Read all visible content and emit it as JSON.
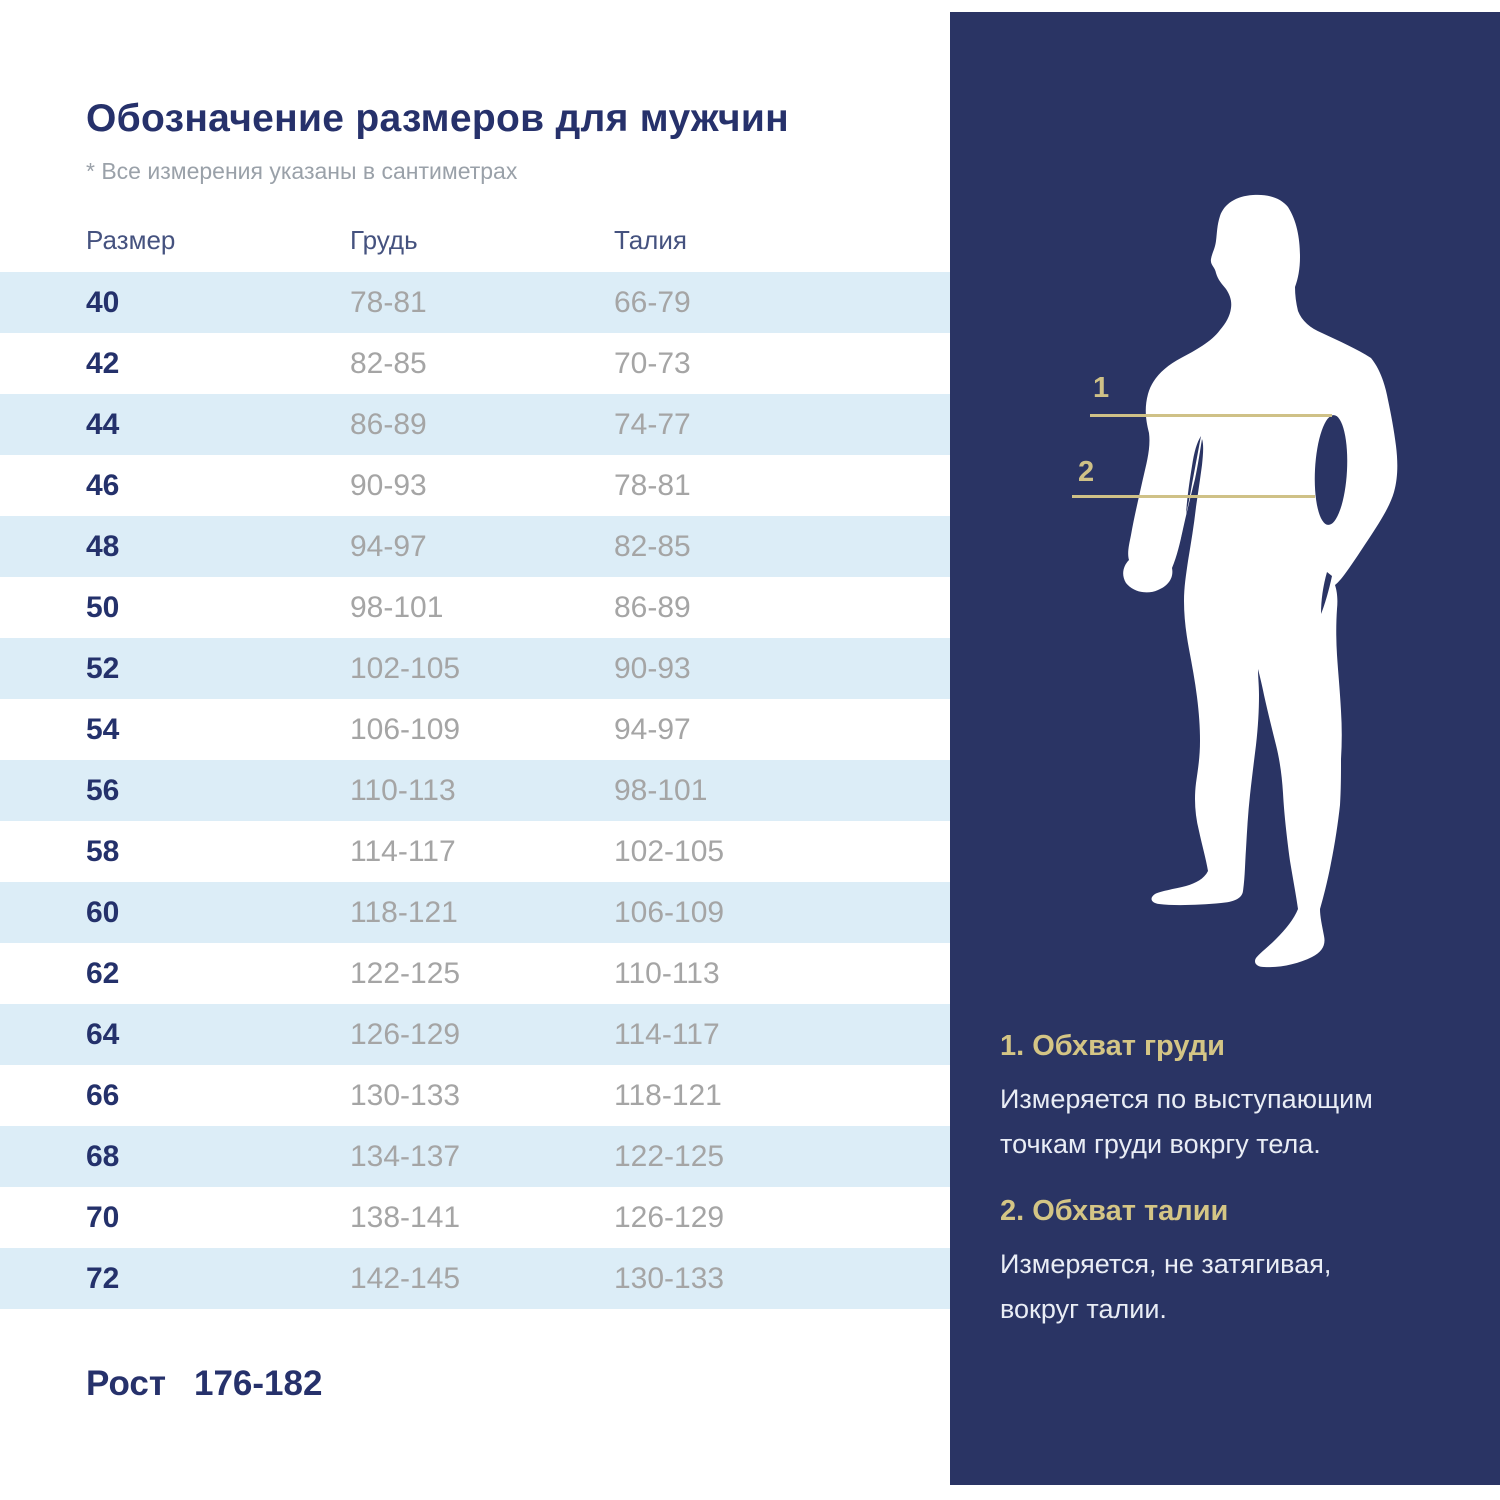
{
  "header": {
    "title": "Обозначение размеров для мужчин",
    "note": "* Все измерения указаны в сантиметрах"
  },
  "table": {
    "columns": [
      "Размер",
      "Грудь",
      "Талия"
    ],
    "rows": [
      {
        "size": "40",
        "chest": "78-81",
        "waist": "66-79"
      },
      {
        "size": "42",
        "chest": "82-85",
        "waist": "70-73"
      },
      {
        "size": "44",
        "chest": "86-89",
        "waist": "74-77"
      },
      {
        "size": "46",
        "chest": "90-93",
        "waist": "78-81"
      },
      {
        "size": "48",
        "chest": "94-97",
        "waist": "82-85"
      },
      {
        "size": "50",
        "chest": "98-101",
        "waist": "86-89"
      },
      {
        "size": "52",
        "chest": "102-105",
        "waist": "90-93"
      },
      {
        "size": "54",
        "chest": "106-109",
        "waist": "94-97"
      },
      {
        "size": "56",
        "chest": "110-113",
        "waist": "98-101"
      },
      {
        "size": "58",
        "chest": "114-117",
        "waist": "102-105"
      },
      {
        "size": "60",
        "chest": "118-121",
        "waist": "106-109"
      },
      {
        "size": "62",
        "chest": "122-125",
        "waist": "110-113"
      },
      {
        "size": "64",
        "chest": "126-129",
        "waist": "114-117"
      },
      {
        "size": "66",
        "chest": "130-133",
        "waist": "118-121"
      },
      {
        "size": "68",
        "chest": "134-137",
        "waist": "122-125"
      },
      {
        "size": "70",
        "chest": "138-141",
        "waist": "126-129"
      },
      {
        "size": "72",
        "chest": "142-145",
        "waist": "130-133"
      }
    ]
  },
  "footer": {
    "height_label": "Рост",
    "height_value": "176-182"
  },
  "panel": {
    "marker_chest": "1",
    "marker_waist": "2",
    "sections": [
      {
        "title": "1. Обхват груди",
        "text": "Измеряется по  выступающим\nточкам груди вокргу тела."
      },
      {
        "title": "2. Обхват талии",
        "text": "Измеряется, не затягивая,\nвокруг талии."
      }
    ]
  },
  "colors": {
    "panel_navy": "#2a3464",
    "accent_gold": "#cfc187",
    "row_alt_blue": "#dcedf7",
    "title_navy": "#26316b",
    "value_gray": "#a5a5a5",
    "note_gray": "#9aa1a9",
    "legend_text": "#e9edf5",
    "silhouette": "#ffffff"
  }
}
